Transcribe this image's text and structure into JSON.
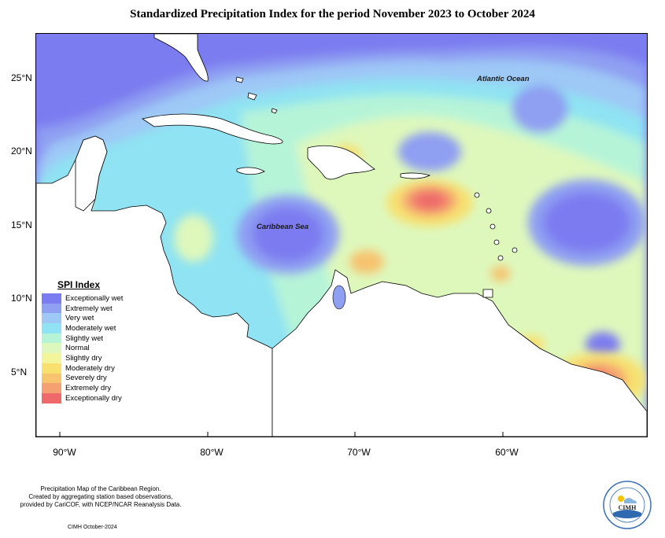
{
  "title": "Standardized Precipitation Index for the period November 2023 to October 2024",
  "map": {
    "labels": {
      "caribbean_sea": "Caribbean Sea",
      "atlantic_ocean": "Atlantic Ocean"
    },
    "lat_ticks": [
      "25°N",
      "20°N",
      "15°N",
      "10°N",
      "5°N"
    ],
    "lon_ticks": [
      "90°W",
      "80°W",
      "70°W",
      "60°W"
    ]
  },
  "legend": {
    "title": "SPI Index",
    "items": [
      {
        "label": "Exceptionally wet",
        "color": "#7b7cf0"
      },
      {
        "label": "Extremely wet",
        "color": "#8f9ff2"
      },
      {
        "label": "Very wet",
        "color": "#9ec8f6"
      },
      {
        "label": "Moderately wet",
        "color": "#8fe3f2"
      },
      {
        "label": "Slightly wet",
        "color": "#b6f4d8"
      },
      {
        "label": "Normal",
        "color": "#def8bc"
      },
      {
        "label": "Slightly dry",
        "color": "#f3f59a"
      },
      {
        "label": "Moderately dry",
        "color": "#f7e070"
      },
      {
        "label": "Severely dry",
        "color": "#f7c36e"
      },
      {
        "label": "Extremely dry",
        "color": "#f4a070"
      },
      {
        "label": "Exceptionally dry",
        "color": "#ee6a6a"
      }
    ]
  },
  "footnote": {
    "line1": "Precipitation Map of the Caribbean Region.",
    "line2": "Created by aggregating station based observations,",
    "line3": "provided by CariCOF, with NCEP/NCAR Reanalysis Data."
  },
  "credit": "CIMH October-2024",
  "logo": {
    "text": "CIMH"
  }
}
